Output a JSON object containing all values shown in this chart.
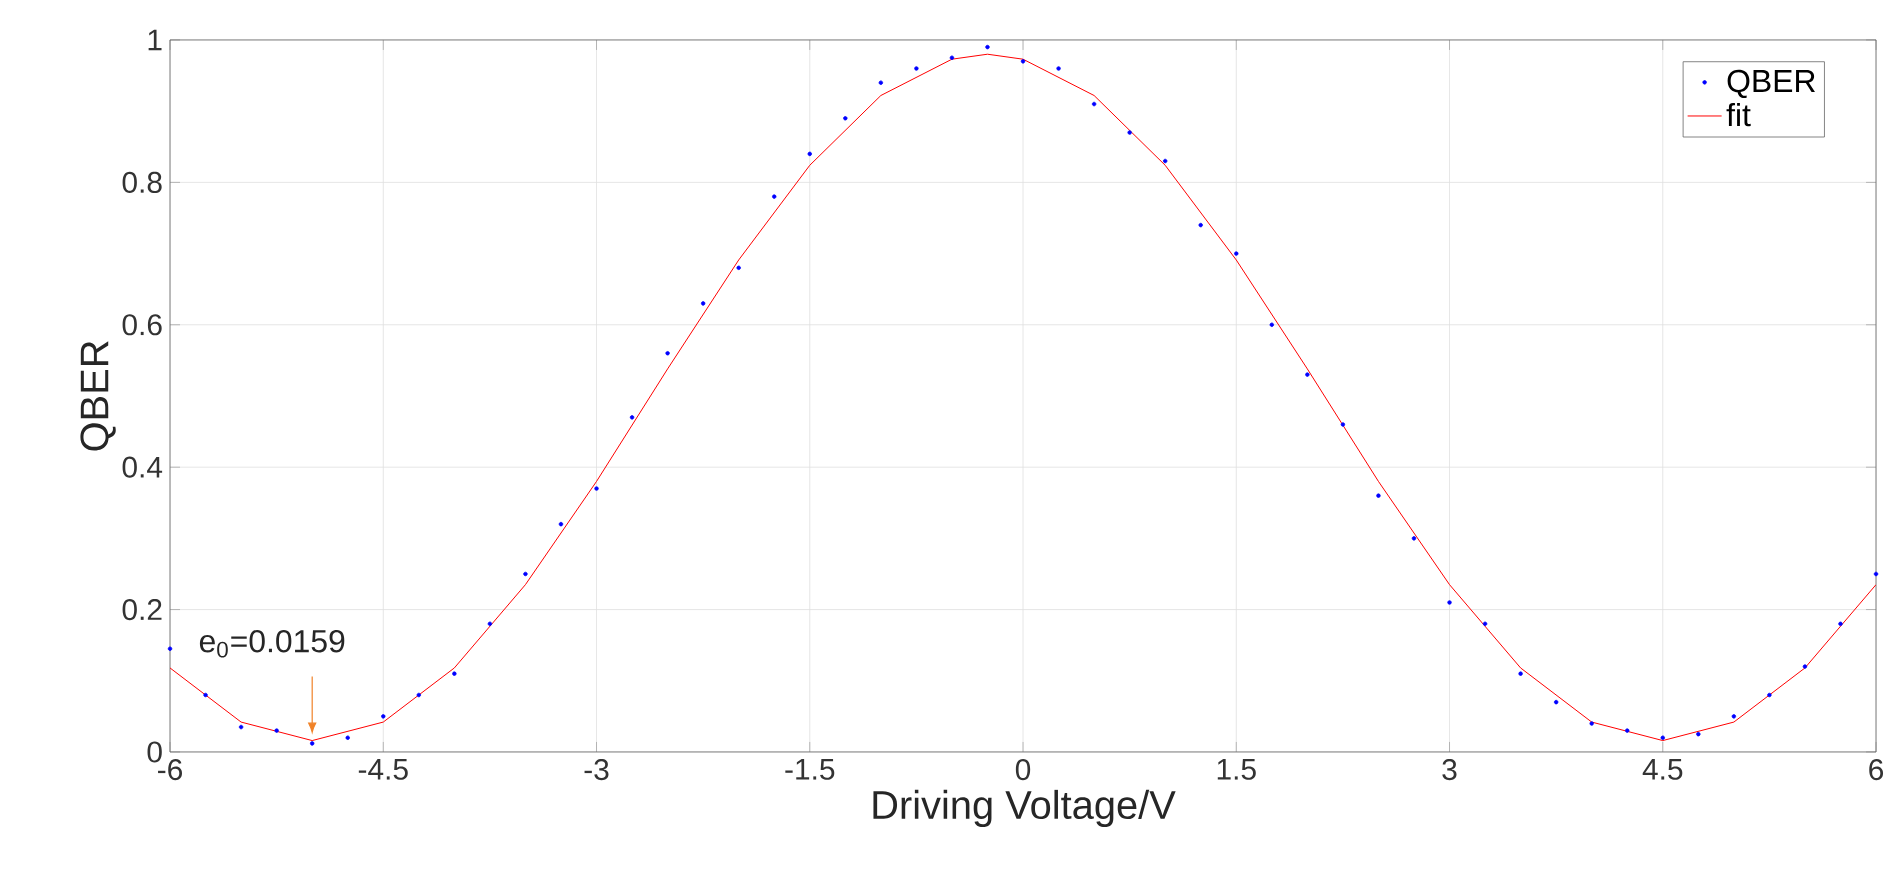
{
  "chart_data": {
    "type": "scatter",
    "xlabel": "Driving Voltage/V",
    "ylabel": "QBER",
    "xlim": [
      -6,
      6
    ],
    "ylim": [
      0,
      1
    ],
    "xticks": [
      -6,
      -4.5,
      -3,
      -1.5,
      0,
      1.5,
      3,
      4.5,
      6
    ],
    "yticks": [
      0,
      0.2,
      0.4,
      0.6,
      0.8,
      1
    ],
    "grid": true,
    "legend": "top right",
    "annotations": [
      {
        "text": "e$_{0}$=0.0159",
        "x": -5,
        "y": 0.016
      }
    ],
    "series": [
      {
        "name": "QBER",
        "color": "#0000ff",
        "x": [
          -6,
          -5.75,
          -5.5,
          -5.25,
          -5,
          -4.75,
          -4.5,
          -4.25,
          -4,
          -3.75,
          -3.5,
          -3.25,
          -3,
          -2.75,
          -2.5,
          -2.25,
          -2,
          -1.75,
          -1.5,
          -1.25,
          -1,
          -0.75,
          -0.5,
          -0.25,
          0,
          0.25,
          0.5,
          0.75,
          1,
          1.25,
          1.5,
          1.75,
          2,
          2.25,
          2.5,
          2.75,
          3,
          3.25,
          3.5,
          3.75,
          4,
          4.25,
          4.5,
          4.75,
          5,
          5.25,
          5.5,
          5.75,
          6
        ],
        "values": [
          0.145,
          0.08,
          0.035,
          0.03,
          0.012,
          0.02,
          0.05,
          0.08,
          0.11,
          0.18,
          0.25,
          0.32,
          0.37,
          0.47,
          0.56,
          0.63,
          0.68,
          0.78,
          0.84,
          0.89,
          0.94,
          0.96,
          0.975,
          0.99,
          0.97,
          0.96,
          0.91,
          0.87,
          0.83,
          0.74,
          0.7,
          0.6,
          0.53,
          0.46,
          0.36,
          0.3,
          0.21,
          0.18,
          0.11,
          0.07,
          0.04,
          0.03,
          0.02,
          0.025,
          0.05,
          0.08,
          0.12,
          0.18,
          0.25
        ]
      },
      {
        "name": "fit",
        "type": "line",
        "color": "#ff0000",
        "x": [
          -6,
          -5.5,
          -5,
          -4.5,
          -4,
          -3.5,
          -3,
          -2.5,
          -2,
          -1.5,
          -1,
          -0.5,
          -0.25,
          0,
          0.5,
          1,
          1.5,
          2,
          2.5,
          3,
          3.5,
          4,
          4.5,
          5,
          5.5,
          6
        ],
        "values": [
          0.118,
          0.042,
          0.016,
          0.042,
          0.118,
          0.235,
          0.38,
          0.538,
          0.691,
          0.824,
          0.922,
          0.973,
          0.98,
          0.973,
          0.922,
          0.824,
          0.691,
          0.538,
          0.38,
          0.235,
          0.118,
          0.042,
          0.016,
          0.042,
          0.118,
          0.235
        ]
      }
    ]
  }
}
